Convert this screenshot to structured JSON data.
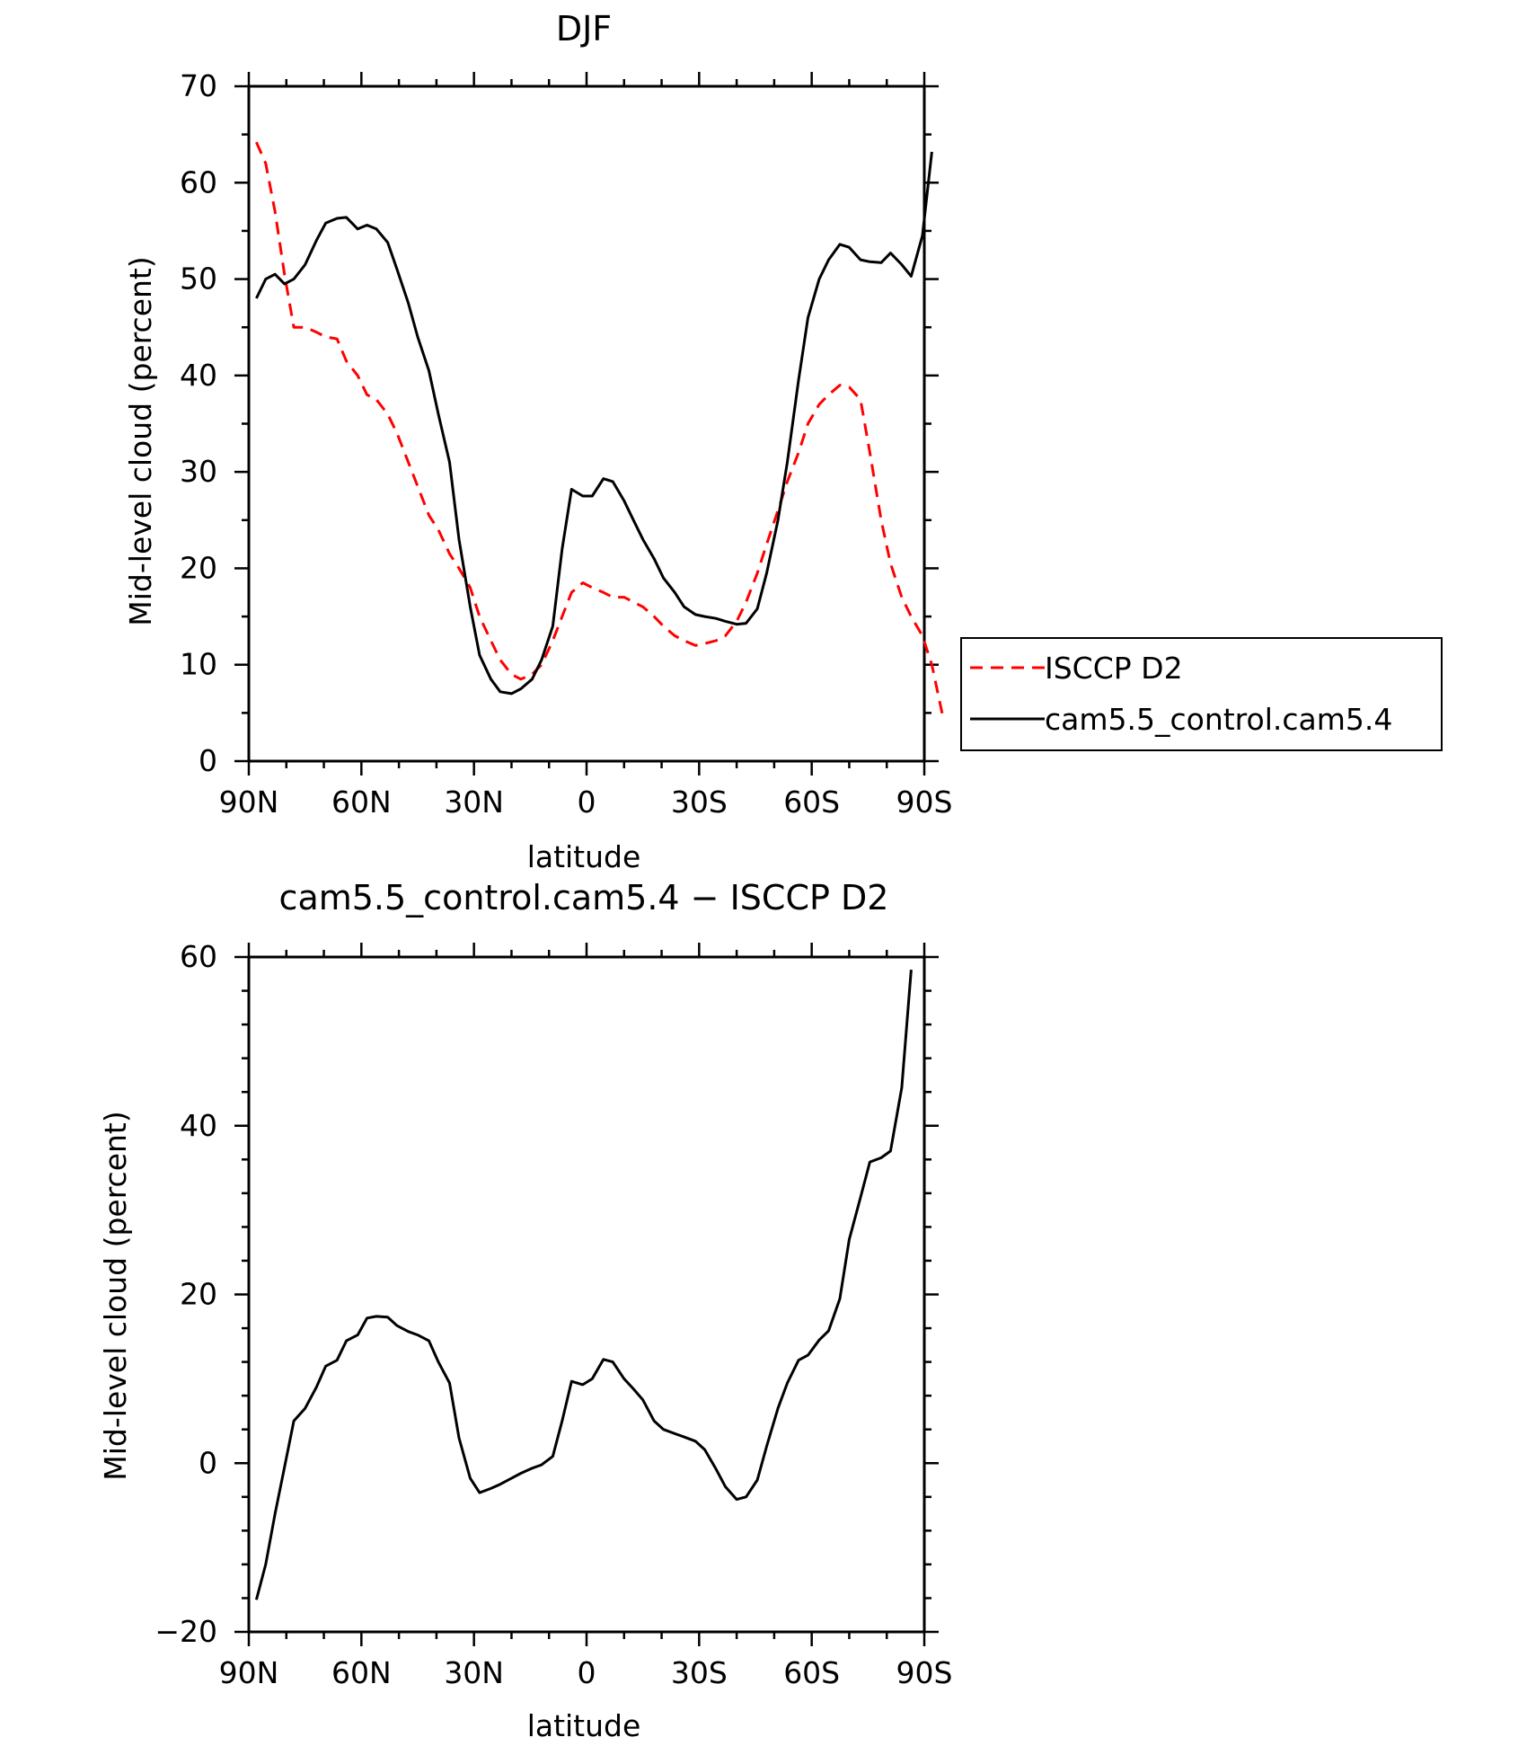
{
  "chart_data": [
    {
      "type": "line",
      "title": "DJF",
      "xlabel": "latitude",
      "ylabel": "Mid-level cloud (percent)",
      "xlim": [
        90,
        -90
      ],
      "ylim": [
        0,
        70
      ],
      "x_ticks": [
        {
          "value": 90,
          "label": "90N"
        },
        {
          "value": 60,
          "label": "60N"
        },
        {
          "value": 30,
          "label": "30N"
        },
        {
          "value": 0,
          "label": "0"
        },
        {
          "value": -30,
          "label": "30S"
        },
        {
          "value": -60,
          "label": "60S"
        },
        {
          "value": -90,
          "label": "90S"
        }
      ],
      "y_ticks": [
        0,
        10,
        20,
        30,
        40,
        50,
        60,
        70
      ],
      "grid": false,
      "legend_position": "right",
      "series": [
        {
          "name": "ISCCP D2",
          "color": "#ff0000",
          "dash": "dashed",
          "points": [
            [
              88,
              64.2
            ],
            [
              85.5,
              62
            ],
            [
              83,
              57
            ],
            [
              80.5,
              50.5
            ],
            [
              78,
              45
            ],
            [
              75,
              45
            ],
            [
              72,
              44.5
            ],
            [
              69.5,
              44
            ],
            [
              66.5,
              43.8
            ],
            [
              64,
              41.5
            ],
            [
              61,
              40
            ],
            [
              58.5,
              38
            ],
            [
              56,
              37.5
            ],
            [
              53,
              36
            ],
            [
              50.5,
              34
            ],
            [
              47.5,
              31
            ],
            [
              45,
              28.5
            ],
            [
              42,
              25.5
            ],
            [
              39.5,
              24
            ],
            [
              36.5,
              21.5
            ],
            [
              34,
              20
            ],
            [
              31,
              18
            ],
            [
              28.5,
              15
            ],
            [
              25.5,
              12.5
            ],
            [
              23,
              10.5
            ],
            [
              20,
              9
            ],
            [
              17.5,
              8.5
            ],
            [
              14.5,
              9
            ],
            [
              12,
              10
            ],
            [
              9,
              12.5
            ],
            [
              6.5,
              15
            ],
            [
              4,
              17.5
            ],
            [
              1,
              18.5
            ],
            [
              -1.5,
              18
            ],
            [
              -4.5,
              17.5
            ],
            [
              -7,
              17
            ],
            [
              -10,
              17
            ],
            [
              -12.5,
              16.5
            ],
            [
              -15,
              16
            ],
            [
              -18,
              15
            ],
            [
              -20.5,
              14
            ],
            [
              -23.5,
              13
            ],
            [
              -26,
              12.5
            ],
            [
              -29,
              12
            ],
            [
              -31.5,
              12.2
            ],
            [
              -34.5,
              12.5
            ],
            [
              -37,
              13
            ],
            [
              -40,
              14.5
            ],
            [
              -42.5,
              16.5
            ],
            [
              -45.5,
              19.5
            ],
            [
              -48,
              22.5
            ],
            [
              -51,
              26
            ],
            [
              -53.5,
              29
            ],
            [
              -56.5,
              32
            ],
            [
              -59,
              35
            ],
            [
              -62,
              37
            ],
            [
              -64.5,
              38
            ],
            [
              -67.5,
              39
            ],
            [
              -70,
              38.8
            ],
            [
              -73,
              37.5
            ],
            [
              -75.5,
              32
            ],
            [
              -78.5,
              25
            ],
            [
              -81,
              20.5
            ],
            [
              -84,
              17
            ],
            [
              -86.5,
              15
            ],
            [
              -89.5,
              13
            ],
            [
              -92,
              10
            ],
            [
              -95,
              4.5
            ]
          ]
        },
        {
          "name": "cam5.5_control.cam5.4",
          "color": "#000000",
          "dash": "solid",
          "points": [
            [
              88,
              48
            ],
            [
              85.5,
              50
            ],
            [
              83,
              50.5
            ],
            [
              80.5,
              49.5
            ],
            [
              78,
              50
            ],
            [
              75,
              51.5
            ],
            [
              72,
              54
            ],
            [
              69.5,
              55.8
            ],
            [
              66.5,
              56.3
            ],
            [
              64,
              56.4
            ],
            [
              61,
              55.2
            ],
            [
              58.5,
              55.6
            ],
            [
              56,
              55.2
            ],
            [
              53,
              53.8
            ],
            [
              50.5,
              51
            ],
            [
              47.5,
              47.5
            ],
            [
              45,
              44
            ],
            [
              42,
              40.5
            ],
            [
              39.5,
              36
            ],
            [
              36.5,
              31
            ],
            [
              34,
              23
            ],
            [
              31,
              16
            ],
            [
              28.5,
              11
            ],
            [
              25.5,
              8.5
            ],
            [
              23,
              7.2
            ],
            [
              20,
              7
            ],
            [
              17.5,
              7.5
            ],
            [
              14.5,
              8.5
            ],
            [
              12,
              10.5
            ],
            [
              9,
              14
            ],
            [
              6.5,
              22
            ],
            [
              4,
              28.2
            ],
            [
              1,
              27.5
            ],
            [
              -1.5,
              27.5
            ],
            [
              -4.5,
              29.3
            ],
            [
              -7,
              29
            ],
            [
              -10,
              27
            ],
            [
              -12.5,
              25
            ],
            [
              -15,
              23
            ],
            [
              -18,
              21
            ],
            [
              -20.5,
              19
            ],
            [
              -23.5,
              17.5
            ],
            [
              -26,
              16
            ],
            [
              -29,
              15.2
            ],
            [
              -31.5,
              15
            ],
            [
              -34.5,
              14.8
            ],
            [
              -37,
              14.5
            ],
            [
              -40,
              14.2
            ],
            [
              -42.5,
              14.3
            ],
            [
              -45.5,
              15.8
            ],
            [
              -48,
              19.5
            ],
            [
              -51,
              25
            ],
            [
              -53.5,
              31
            ],
            [
              -56.5,
              39.5
            ],
            [
              -59,
              46
            ],
            [
              -62,
              50
            ],
            [
              -64.5,
              52
            ],
            [
              -67.5,
              53.6
            ],
            [
              -70,
              53.3
            ],
            [
              -73,
              52
            ],
            [
              -75.5,
              51.8
            ],
            [
              -78.5,
              51.7
            ],
            [
              -81,
              52.7
            ],
            [
              -84,
              51.5
            ],
            [
              -86.5,
              50.3
            ],
            [
              -89.5,
              54.5
            ],
            [
              -92,
              63.2
            ]
          ]
        }
      ]
    },
    {
      "type": "line",
      "title": "cam5.5_control.cam5.4 − ISCCP D2",
      "xlabel": "latitude",
      "ylabel": "Mid-level cloud (percent)",
      "xlim": [
        90,
        -90
      ],
      "ylim": [
        -20,
        60
      ],
      "x_ticks": [
        {
          "value": 90,
          "label": "90N"
        },
        {
          "value": 60,
          "label": "60N"
        },
        {
          "value": 30,
          "label": "30N"
        },
        {
          "value": 0,
          "label": "0"
        },
        {
          "value": -30,
          "label": "30S"
        },
        {
          "value": -60,
          "label": "60S"
        },
        {
          "value": -90,
          "label": "90S"
        }
      ],
      "y_ticks": [
        {
          "value": -20,
          "label": "−20"
        },
        {
          "value": 0,
          "label": "0"
        },
        {
          "value": 20,
          "label": "20"
        },
        {
          "value": 40,
          "label": "40"
        },
        {
          "value": 60,
          "label": "60"
        }
      ],
      "grid": false,
      "series": [
        {
          "color": "#000000",
          "dash": "solid",
          "points": [
            [
              88,
              -16.2
            ],
            [
              85.5,
              -12
            ],
            [
              83,
              -6
            ],
            [
              80.5,
              -0.5
            ],
            [
              78,
              5
            ],
            [
              75,
              6.5
            ],
            [
              72,
              9
            ],
            [
              69.5,
              11.5
            ],
            [
              66.5,
              12.2
            ],
            [
              64,
              14.5
            ],
            [
              61,
              15.2
            ],
            [
              58.5,
              17.2
            ],
            [
              56,
              17.4
            ],
            [
              53,
              17.3
            ],
            [
              50.5,
              16.3
            ],
            [
              47.5,
              15.6
            ],
            [
              45,
              15.2
            ],
            [
              42,
              14.5
            ],
            [
              39.5,
              12
            ],
            [
              36.5,
              9.5
            ],
            [
              34,
              3
            ],
            [
              31,
              -1.8
            ],
            [
              28.5,
              -3.5
            ],
            [
              25.5,
              -3
            ],
            [
              23,
              -2.5
            ],
            [
              20,
              -1.8
            ],
            [
              17.5,
              -1.2
            ],
            [
              14.5,
              -0.6
            ],
            [
              12,
              -0.2
            ],
            [
              9,
              0.8
            ],
            [
              6.5,
              5
            ],
            [
              4,
              9.7
            ],
            [
              1,
              9.3
            ],
            [
              -1.5,
              10
            ],
            [
              -4.5,
              12.3
            ],
            [
              -7,
              12
            ],
            [
              -10,
              10
            ],
            [
              -12.5,
              8.8
            ],
            [
              -15,
              7.5
            ],
            [
              -18,
              5
            ],
            [
              -20.5,
              4
            ],
            [
              -23.5,
              3.5
            ],
            [
              -26,
              3.1
            ],
            [
              -29,
              2.6
            ],
            [
              -31.5,
              1.6
            ],
            [
              -34.5,
              -0.7
            ],
            [
              -37,
              -2.8
            ],
            [
              -40,
              -4.3
            ],
            [
              -42.5,
              -4
            ],
            [
              -45.5,
              -2
            ],
            [
              -48,
              2
            ],
            [
              -51,
              6.5
            ],
            [
              -53.5,
              9.5
            ],
            [
              -56.5,
              12.2
            ],
            [
              -59,
              12.8
            ],
            [
              -62,
              14.6
            ],
            [
              -64.5,
              15.7
            ],
            [
              -67.5,
              19.5
            ],
            [
              -70,
              26.5
            ],
            [
              -73,
              31.5
            ],
            [
              -75.5,
              35.7
            ],
            [
              -78.5,
              36.2
            ],
            [
              -81,
              37
            ],
            [
              -84,
              44.5
            ],
            [
              -86.5,
              58.5
            ]
          ]
        }
      ]
    }
  ]
}
